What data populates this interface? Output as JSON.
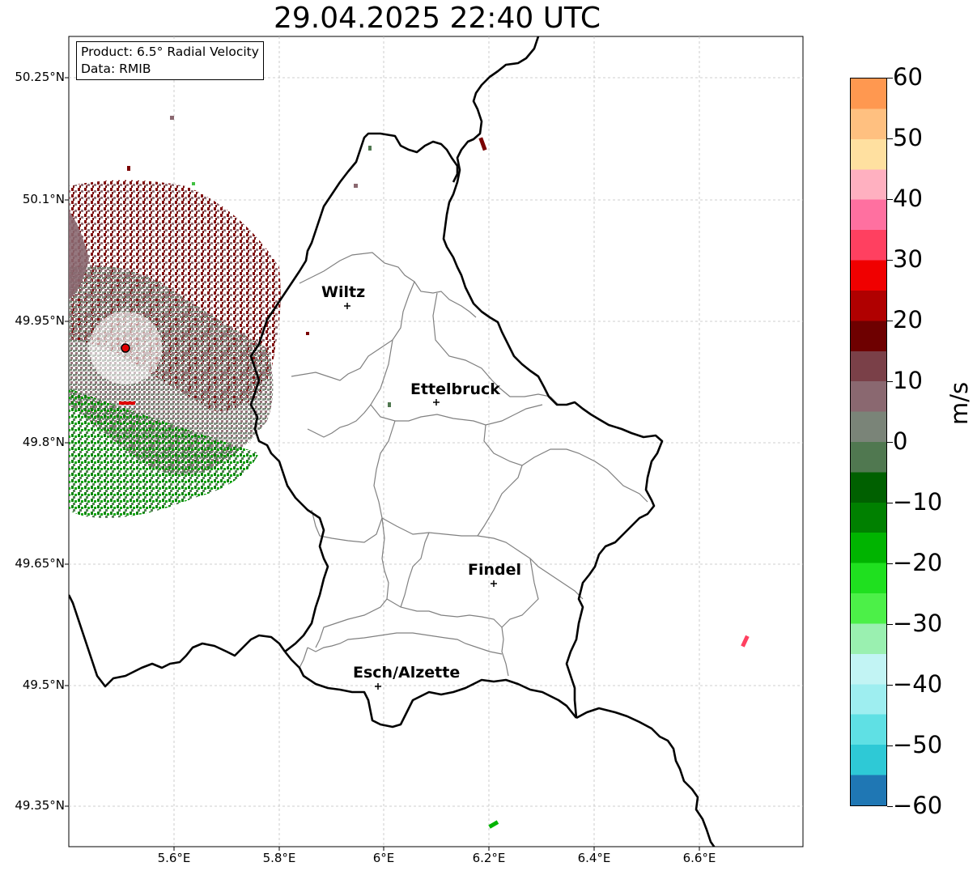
{
  "title": "29.04.2025 22:40 UTC",
  "infobox": {
    "product": "Product: 6.5° Radial Velocity",
    "data": "Data: RMIB"
  },
  "map": {
    "lat_labels": [
      "50.25°N",
      "50.1°N",
      "49.95°N",
      "49.8°N",
      "49.65°N",
      "49.5°N",
      "49.35°N"
    ],
    "lon_labels": [
      "5.6°E",
      "5.8°E",
      "6°E",
      "6.2°E",
      "6.4°E",
      "6.6°E"
    ],
    "gridlines": "on",
    "towns": [
      {
        "name": "Wiltz",
        "lat": 49.966,
        "lon": 5.932
      },
      {
        "name": "Ettelbruck",
        "lat": 49.847,
        "lon": 6.104
      },
      {
        "name": "Findel",
        "lat": 49.627,
        "lon": 6.211
      },
      {
        "name": "Esch/Alzette",
        "lat": 49.499,
        "lon": 5.99
      }
    ],
    "radar_site": {
      "lat": 49.915,
      "lon": 5.505
    },
    "colors": {
      "border": "#000000",
      "cantons": "#808080",
      "grid": "#bfbfbf"
    }
  },
  "colorbar": {
    "unit": "m/s",
    "min": -60,
    "max": 60,
    "ticks": [
      "60",
      "50",
      "40",
      "30",
      "20",
      "10",
      "0",
      "−10",
      "−20",
      "−30",
      "−40",
      "−50",
      "−60"
    ],
    "stops": [
      "#1f77b4",
      "#2ec9d6",
      "#5fe0e4",
      "#9eeef0",
      "#c2f4f4",
      "#9af0b0",
      "#4cf048",
      "#1fe01f",
      "#00b400",
      "#008000",
      "#006000",
      "#507850",
      "#7a8478",
      "#8a6870",
      "#7a4048",
      "#6e0000",
      "#b00000",
      "#f00000",
      "#ff4060",
      "#ff70a0",
      "#ffb0c0",
      "#ffe0a0",
      "#ffc080",
      "#ff9850"
    ]
  }
}
